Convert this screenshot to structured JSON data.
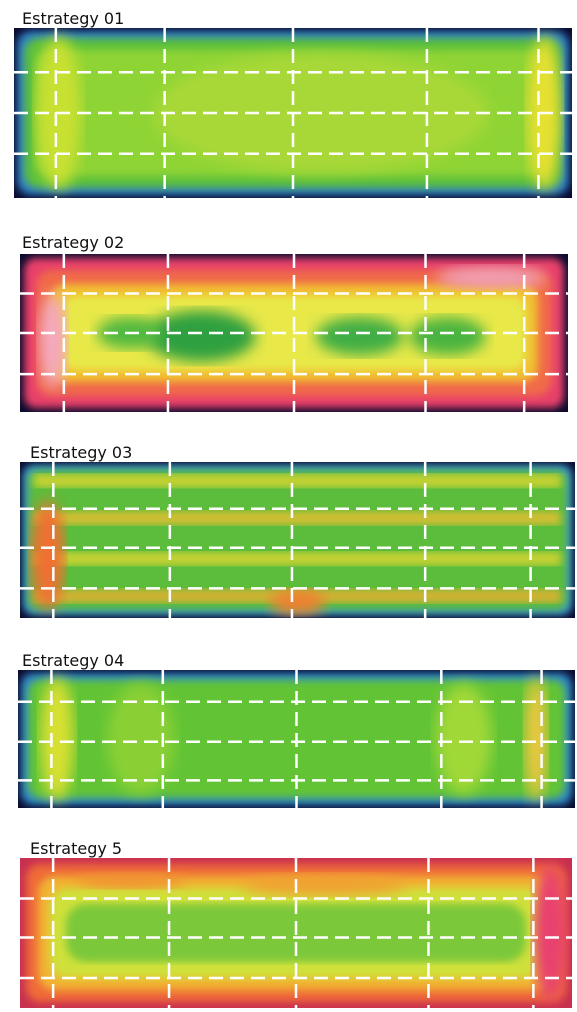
{
  "panels": [
    {
      "label": "Estrategy 01"
    },
    {
      "label": "Estrategy 02"
    },
    {
      "label": "Estrategy 03"
    },
    {
      "label": "Estrategy 04"
    },
    {
      "label": "Estrategy 5"
    }
  ]
}
